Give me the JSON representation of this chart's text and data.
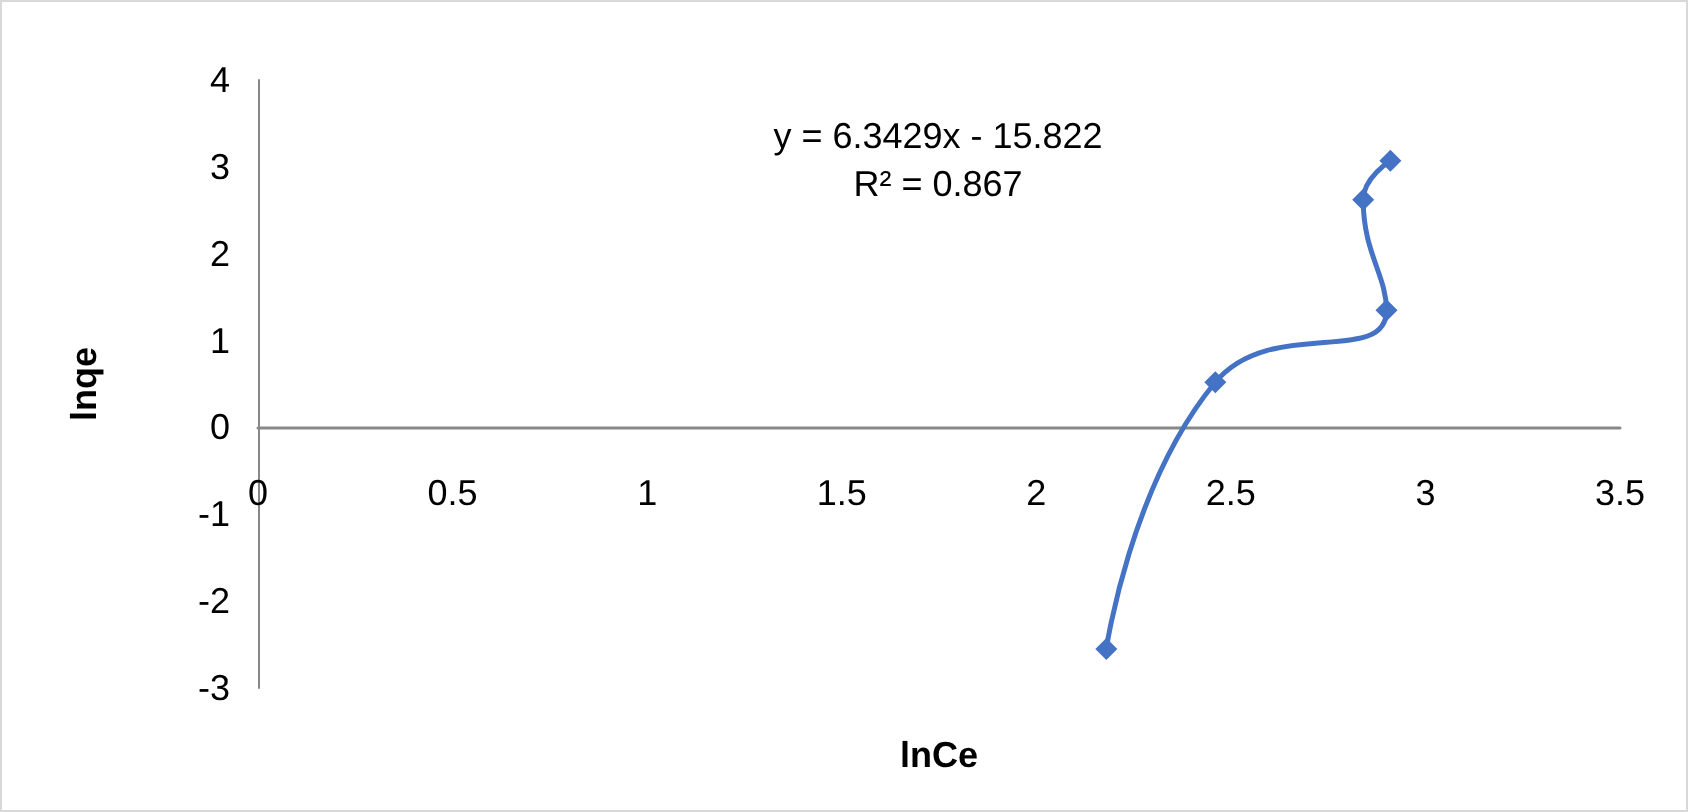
{
  "chart_data": {
    "type": "line",
    "xlabel": "lnCe",
    "ylabel": "lnqe",
    "annotations": [
      "y = 6.3429x - 15.822",
      "R² = 0.867"
    ],
    "x": [
      2.18,
      2.46,
      2.9,
      2.84,
      2.91
    ],
    "series": [
      {
        "color": "#4472c4",
        "values": [
          -2.55,
          0.52,
          1.35,
          2.62,
          3.07
        ]
      }
    ],
    "xlim": [
      0,
      3.5
    ],
    "xticks": [
      0,
      0.5,
      1,
      1.5,
      2,
      2.5,
      3,
      3.5
    ],
    "ylim": [
      -3,
      4
    ],
    "yticks": [
      -3,
      -2,
      -1,
      0,
      1,
      2,
      3,
      4
    ],
    "marker": "diamond",
    "line_style": "solid"
  }
}
